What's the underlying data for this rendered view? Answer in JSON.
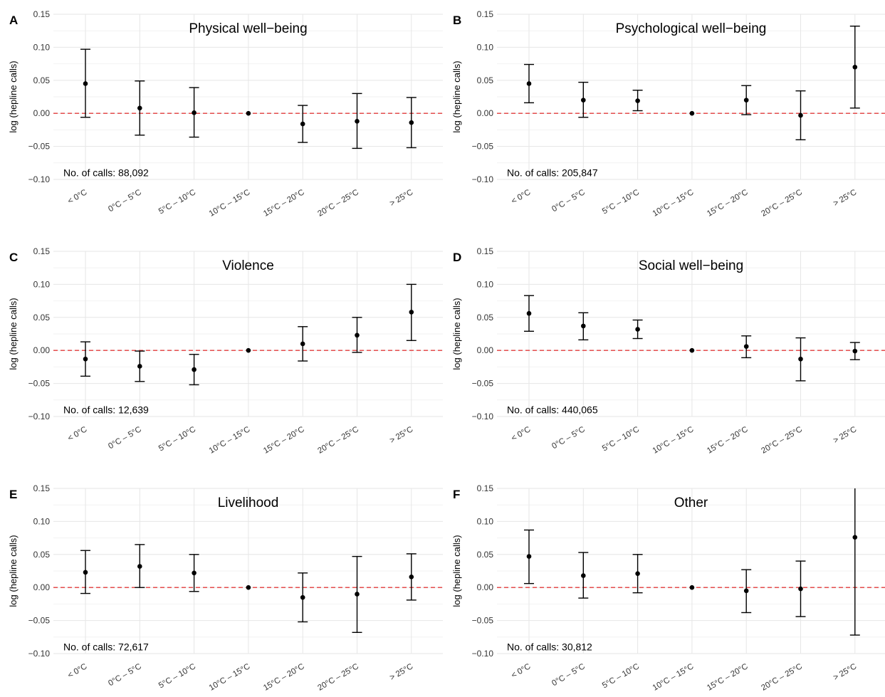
{
  "y_axis_label": "log (hepline calls)",
  "x_ticks": [
    "< 0°C",
    "0°C – 5°C",
    "5°C – 10°C",
    "10°C – 15°C",
    "15°C – 20°C",
    "20°C – 25°C",
    "> 25°C"
  ],
  "y_ticks": [
    "0.15",
    "0.10",
    "0.05",
    "0.00",
    "−0.05",
    "−0.10"
  ],
  "colors": {
    "reference_line": "#e23b3b",
    "points": "#000000",
    "grid": "#e6e6e6"
  },
  "chart_data": [
    {
      "type": "scatter",
      "panel": "A",
      "title": "Physical well−being",
      "calls_text": "No. of calls: 88,092",
      "ylim": [
        -0.1,
        0.15
      ],
      "reference_line": 0,
      "categories": [
        "< 0°C",
        "0°C – 5°C",
        "5°C – 10°C",
        "10°C – 15°C",
        "15°C – 20°C",
        "20°C – 25°C",
        "> 25°C"
      ],
      "estimate": [
        0.045,
        0.008,
        0.001,
        0.0,
        -0.016,
        -0.012,
        -0.014
      ],
      "lower": [
        -0.006,
        -0.033,
        -0.036,
        0.0,
        -0.044,
        -0.053,
        -0.052
      ],
      "upper": [
        0.097,
        0.049,
        0.039,
        0.0,
        0.012,
        0.03,
        0.024
      ]
    },
    {
      "type": "scatter",
      "panel": "B",
      "title": "Psychological well−being",
      "calls_text": "No. of calls: 205,847",
      "ylim": [
        -0.1,
        0.15
      ],
      "reference_line": 0,
      "categories": [
        "< 0°C",
        "0°C – 5°C",
        "5°C – 10°C",
        "10°C – 15°C",
        "15°C – 20°C",
        "20°C – 25°C",
        "> 25°C"
      ],
      "estimate": [
        0.045,
        0.02,
        0.019,
        0.0,
        0.02,
        -0.003,
        0.07
      ],
      "lower": [
        0.016,
        -0.006,
        0.004,
        0.0,
        -0.002,
        -0.04,
        0.008
      ],
      "upper": [
        0.074,
        0.047,
        0.035,
        0.0,
        0.042,
        0.034,
        0.132
      ]
    },
    {
      "type": "scatter",
      "panel": "C",
      "title": "Violence",
      "calls_text": "No. of calls: 12,639",
      "ylim": [
        -0.1,
        0.15
      ],
      "reference_line": 0,
      "categories": [
        "< 0°C",
        "0°C – 5°C",
        "5°C – 10°C",
        "10°C – 15°C",
        "15°C – 20°C",
        "20°C – 25°C",
        "> 25°C"
      ],
      "estimate": [
        -0.013,
        -0.024,
        -0.029,
        0.0,
        0.01,
        0.023,
        0.058
      ],
      "lower": [
        -0.039,
        -0.047,
        -0.052,
        0.0,
        -0.016,
        -0.003,
        0.015
      ],
      "upper": [
        0.013,
        -0.001,
        -0.006,
        0.0,
        0.036,
        0.05,
        0.1
      ]
    },
    {
      "type": "scatter",
      "panel": "D",
      "title": "Social well−being",
      "calls_text": "No. of calls: 440,065",
      "ylim": [
        -0.1,
        0.15
      ],
      "reference_line": 0,
      "categories": [
        "< 0°C",
        "0°C – 5°C",
        "5°C – 10°C",
        "10°C – 15°C",
        "15°C – 20°C",
        "20°C – 25°C",
        "> 25°C"
      ],
      "estimate": [
        0.056,
        0.037,
        0.032,
        0.0,
        0.006,
        -0.013,
        -0.001
      ],
      "lower": [
        0.029,
        0.016,
        0.018,
        0.0,
        -0.011,
        -0.046,
        -0.014
      ],
      "upper": [
        0.083,
        0.057,
        0.046,
        0.0,
        0.022,
        0.019,
        0.012
      ]
    },
    {
      "type": "scatter",
      "panel": "E",
      "title": "Livelihood",
      "calls_text": "No. of calls: 72,617",
      "ylim": [
        -0.1,
        0.15
      ],
      "reference_line": 0,
      "categories": [
        "< 0°C",
        "0°C – 5°C",
        "5°C – 10°C",
        "10°C – 15°C",
        "15°C – 20°C",
        "20°C – 25°C",
        "> 25°C"
      ],
      "estimate": [
        0.023,
        0.032,
        0.022,
        0.0,
        -0.015,
        -0.01,
        0.016
      ],
      "lower": [
        -0.009,
        0.0,
        -0.006,
        0.0,
        -0.052,
        -0.068,
        -0.019
      ],
      "upper": [
        0.056,
        0.065,
        0.05,
        0.0,
        0.022,
        0.047,
        0.051
      ]
    },
    {
      "type": "scatter",
      "panel": "F",
      "title": "Other",
      "calls_text": "No. of calls: 30,812",
      "ylim": [
        -0.1,
        0.15
      ],
      "reference_line": 0,
      "categories": [
        "< 0°C",
        "0°C – 5°C",
        "5°C – 10°C",
        "10°C – 15°C",
        "15°C – 20°C",
        "20°C – 25°C",
        "> 25°C"
      ],
      "estimate": [
        0.047,
        0.018,
        0.021,
        0.0,
        -0.005,
        -0.002,
        0.076
      ],
      "lower": [
        0.006,
        -0.016,
        -0.008,
        0.0,
        -0.038,
        -0.044,
        -0.072
      ],
      "upper": [
        0.087,
        0.053,
        0.05,
        0.0,
        0.027,
        0.04,
        0.152
      ]
    }
  ]
}
